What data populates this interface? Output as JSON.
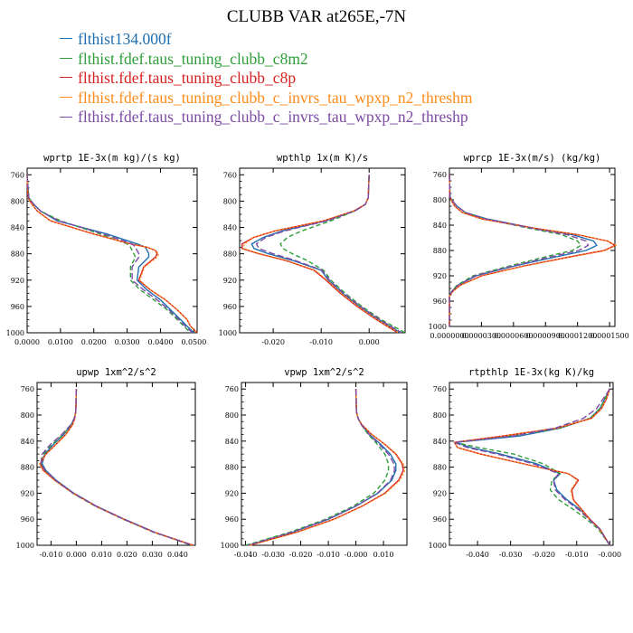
{
  "title": "CLUBB VAR at265E,-7N",
  "legend": [
    {
      "name": "flthist134.000f",
      "color": "#1f6fb0"
    },
    {
      "name": "flthist.fdef.taus_tuning_clubb_c8m2",
      "color": "#2e9e3a"
    },
    {
      "name": "flthist.fdef.taus_tuning_clubb_c8p",
      "color": "#d62222"
    },
    {
      "name": "flthist.fdef.taus_tuning_clubb_c_invrs_tau_wpxp_n2_threshm",
      "color": "#ff8c1a"
    },
    {
      "name": "flthist.fdef.taus_tuning_clubb_c_invrs_tau_wpxp_n2_threshp",
      "color": "#7d4ba3"
    }
  ],
  "chart_data": [
    {
      "type": "line",
      "title": "wprtp  1E-3x(m kg)/(s kg)",
      "xlim": [
        0,
        0.051
      ],
      "ylim": [
        1000,
        750
      ],
      "xticks": [
        "0.0000",
        "0.0100",
        "0.0200",
        "0.0300",
        "0.0400",
        "0.0500"
      ],
      "xtick_values": [
        0,
        0.01,
        0.02,
        0.03,
        0.04,
        0.05
      ],
      "yticks": [
        "760",
        "800",
        "840",
        "880",
        "920",
        "960",
        "1000"
      ],
      "ytick_values": [
        760,
        800,
        840,
        880,
        920,
        960,
        1000
      ],
      "y": [
        760,
        795,
        805,
        815,
        830,
        850,
        865,
        870,
        875,
        880,
        885,
        900,
        920,
        935,
        950,
        965,
        980,
        990,
        1000
      ],
      "series": [
        {
          "x": [
            0,
            0.0005,
            0.002,
            0.004,
            0.009,
            0.024,
            0.033,
            0.0355,
            0.036,
            0.0365,
            0.0365,
            0.0335,
            0.033,
            0.036,
            0.04,
            0.043,
            0.046,
            0.048,
            0.05
          ]
        },
        {
          "x": [
            0,
            0.0005,
            0.002,
            0.004,
            0.01,
            0.022,
            0.03,
            0.031,
            0.0315,
            0.032,
            0.0325,
            0.031,
            0.031,
            0.034,
            0.038,
            0.042,
            0.045,
            0.047,
            0.049
          ]
        },
        {
          "x": [
            0,
            0.0003,
            0.0015,
            0.003,
            0.007,
            0.02,
            0.031,
            0.036,
            0.0385,
            0.039,
            0.0385,
            0.035,
            0.0335,
            0.037,
            0.0415,
            0.045,
            0.048,
            0.049,
            0.051
          ]
        },
        {
          "x": [
            0,
            0.0003,
            0.0015,
            0.003,
            0.007,
            0.02,
            0.031,
            0.036,
            0.0385,
            0.0395,
            0.039,
            0.0352,
            0.0338,
            0.037,
            0.0415,
            0.045,
            0.048,
            0.049,
            0.051
          ]
        },
        {
          "x": [
            0,
            0.0005,
            0.002,
            0.004,
            0.0095,
            0.023,
            0.0315,
            0.0325,
            0.033,
            0.0335,
            0.0335,
            0.0315,
            0.0315,
            0.035,
            0.039,
            0.0425,
            0.0455,
            0.0475,
            0.0495
          ]
        }
      ]
    },
    {
      "type": "line",
      "title": "wpthlp  1x(m K)/s",
      "xlim": [
        -0.027,
        0.0075
      ],
      "ylim": [
        1000,
        750
      ],
      "xticks": [
        "-0.020",
        "-0.010",
        "0.000"
      ],
      "xtick_values": [
        -0.02,
        -0.01,
        0
      ],
      "yticks": [
        "760",
        "800",
        "840",
        "880",
        "920",
        "960",
        "1000"
      ],
      "ytick_values": [
        760,
        800,
        840,
        880,
        920,
        960,
        1000
      ],
      "y": [
        760,
        795,
        805,
        815,
        830,
        845,
        855,
        865,
        872,
        880,
        890,
        905,
        920,
        940,
        960,
        980,
        1000
      ],
      "series": [
        {
          "x": [
            0,
            -0.0002,
            -0.0008,
            -0.003,
            -0.009,
            -0.018,
            -0.022,
            -0.0245,
            -0.024,
            -0.021,
            -0.016,
            -0.01,
            -0.0085,
            -0.0055,
            -0.002,
            0.002,
            0.0065
          ]
        },
        {
          "x": [
            0,
            -0.0002,
            -0.0008,
            -0.003,
            -0.008,
            -0.014,
            -0.017,
            -0.0185,
            -0.018,
            -0.016,
            -0.013,
            -0.0095,
            -0.008,
            -0.005,
            -0.0015,
            0.0025,
            0.0075
          ]
        },
        {
          "x": [
            0,
            -0.0002,
            -0.0008,
            -0.0032,
            -0.0095,
            -0.0195,
            -0.024,
            -0.0265,
            -0.0265,
            -0.023,
            -0.0175,
            -0.0115,
            -0.009,
            -0.006,
            -0.0025,
            0.0015,
            0.006
          ]
        },
        {
          "x": [
            0,
            -0.0002,
            -0.0008,
            -0.0032,
            -0.0095,
            -0.0195,
            -0.024,
            -0.026,
            -0.0262,
            -0.0228,
            -0.0173,
            -0.0113,
            -0.0088,
            -0.0058,
            -0.0023,
            0.0017,
            0.0062
          ]
        },
        {
          "x": [
            0,
            -0.0002,
            -0.0008,
            -0.003,
            -0.0088,
            -0.0175,
            -0.0215,
            -0.0235,
            -0.023,
            -0.02,
            -0.0155,
            -0.0098,
            -0.0083,
            -0.0053,
            -0.0018,
            0.0022,
            0.0068
          ]
        }
      ]
    },
    {
      "type": "line",
      "title": "wprcp  1E-3x(m/s) (kg/kg)",
      "xlim": [
        0,
        0.000155
      ],
      "ylim": [
        1000,
        750
      ],
      "xticks": [
        "0.0000000",
        "0.0000300",
        "0.0000600",
        "0.0000900",
        "0.0001200",
        "0.0001500"
      ],
      "xtick_values": [
        0,
        3e-05,
        6e-05,
        9e-05,
        0.00012,
        0.00015
      ],
      "yticks": [
        "760",
        "800",
        "840",
        "880",
        "920",
        "960",
        "1000"
      ],
      "ytick_values": [
        760,
        800,
        840,
        880,
        920,
        960,
        1000
      ],
      "y": [
        760,
        795,
        800,
        810,
        820,
        830,
        845,
        855,
        865,
        872,
        880,
        890,
        905,
        920,
        935,
        945,
        952,
        1000
      ],
      "series": [
        {
          "x": [
            0,
            5e-07,
            2e-06,
            7e-06,
            1.5e-05,
            3.5e-05,
            8e-05,
            0.000115,
            0.000135,
            0.000138,
            0.000128,
            0.0001,
            6e-05,
            2.5e-05,
            8e-06,
            2e-06,
            0,
            0
          ]
        },
        {
          "x": [
            0,
            5e-07,
            2e-06,
            7e-06,
            1.5e-05,
            3.3e-05,
            7.5e-05,
            0.000105,
            0.00012,
            0.000123,
            0.000115,
            9e-05,
            5.5e-05,
            2.2e-05,
            7e-06,
            2e-06,
            0,
            0
          ]
        },
        {
          "x": [
            0,
            4e-07,
            1.5e-06,
            5e-06,
            1.2e-05,
            3e-05,
            8e-05,
            0.00012,
            0.000148,
            0.000155,
            0.000145,
            0.000113,
            6.8e-05,
            3e-05,
            1e-05,
            3e-06,
            0,
            0
          ]
        },
        {
          "x": [
            0,
            4e-07,
            1.5e-06,
            5e-06,
            1.2e-05,
            3e-05,
            8e-05,
            0.00012,
            0.000148,
            0.000156,
            0.000146,
            0.000114,
            6.9e-05,
            3.1e-05,
            1e-05,
            3e-06,
            0,
            0
          ]
        },
        {
          "x": [
            0,
            5e-07,
            2e-06,
            7e-06,
            1.5e-05,
            3.4e-05,
            7.8e-05,
            0.00011,
            0.000128,
            0.00013,
            0.000121,
            9.5e-05,
            5.8e-05,
            2.4e-05,
            8e-06,
            2e-06,
            0,
            0
          ]
        }
      ]
    },
    {
      "type": "line",
      "title": "upwp  1xm^2/s^2",
      "xlim": [
        -0.0155,
        0.047
      ],
      "ylim": [
        1000,
        750
      ],
      "xticks": [
        "-0.010",
        "0.000",
        "0.010",
        "0.020",
        "0.030",
        "0.040"
      ],
      "xtick_values": [
        -0.01,
        0,
        0.01,
        0.02,
        0.03,
        0.04
      ],
      "yticks": [
        "760",
        "800",
        "840",
        "880",
        "920",
        "960",
        "1000"
      ],
      "ytick_values": [
        760,
        800,
        840,
        880,
        920,
        960,
        1000
      ],
      "y": [
        760,
        795,
        805,
        815,
        830,
        845,
        860,
        875,
        885,
        900,
        920,
        940,
        960,
        980,
        1000
      ],
      "series": [
        {
          "x": [
            0,
            -0.0002,
            -0.0008,
            -0.002,
            -0.005,
            -0.009,
            -0.0125,
            -0.0135,
            -0.012,
            -0.008,
            -0.001,
            0.008,
            0.019,
            0.031,
            0.046
          ]
        },
        {
          "x": [
            0,
            -0.0002,
            -0.0008,
            -0.002,
            -0.0052,
            -0.0095,
            -0.013,
            -0.014,
            -0.0125,
            -0.0085,
            -0.0015,
            0.0075,
            0.0185,
            0.0305,
            0.0455
          ]
        },
        {
          "x": [
            0,
            -0.0002,
            -0.0006,
            -0.0015,
            -0.0042,
            -0.008,
            -0.012,
            -0.0143,
            -0.013,
            -0.0085,
            -0.0012,
            0.0078,
            0.0188,
            0.0308,
            0.0462
          ]
        },
        {
          "x": [
            0,
            -0.0002,
            -0.0006,
            -0.0015,
            -0.0042,
            -0.008,
            -0.012,
            -0.0145,
            -0.0132,
            -0.0087,
            -0.0014,
            0.0076,
            0.0186,
            0.0306,
            0.046
          ]
        },
        {
          "x": [
            0,
            -0.0002,
            -0.0008,
            -0.0022,
            -0.0058,
            -0.0102,
            -0.0135,
            -0.014,
            -0.0123,
            -0.0082,
            -0.0012,
            0.0078,
            0.0188,
            0.0308,
            0.0458
          ]
        }
      ]
    },
    {
      "type": "line",
      "title": "vpwp  1xm^2/s^2",
      "xlim": [
        -0.0415,
        0.0185
      ],
      "ylim": [
        1000,
        750
      ],
      "xticks": [
        "-0.040",
        "-0.030",
        "-0.020",
        "-0.010",
        "-0.000",
        "0.010"
      ],
      "xtick_values": [
        -0.04,
        -0.03,
        -0.02,
        -0.01,
        0,
        0.01
      ],
      "yticks": [
        "760",
        "800",
        "840",
        "880",
        "920",
        "960",
        "1000"
      ],
      "ytick_values": [
        760,
        800,
        840,
        880,
        920,
        960,
        1000
      ],
      "y": [
        760,
        795,
        805,
        815,
        830,
        845,
        860,
        875,
        885,
        900,
        920,
        940,
        960,
        980,
        1000
      ],
      "series": [
        {
          "x": [
            0,
            0.0002,
            0.0008,
            0.002,
            0.005,
            0.009,
            0.0125,
            0.0145,
            0.0145,
            0.013,
            0.008,
            0,
            -0.01,
            -0.023,
            -0.039
          ]
        },
        {
          "x": [
            0,
            0.0002,
            0.0008,
            0.002,
            0.0045,
            0.0078,
            0.0105,
            0.0118,
            0.0118,
            0.0105,
            0.0065,
            -0.001,
            -0.011,
            -0.024,
            -0.04
          ]
        },
        {
          "x": [
            0,
            0.0002,
            0.0008,
            0.0022,
            0.0058,
            0.0105,
            0.0145,
            0.0168,
            0.0172,
            0.0155,
            0.0105,
            0.0022,
            -0.008,
            -0.0215,
            -0.0385
          ]
        },
        {
          "x": [
            0,
            0.0002,
            0.0008,
            0.0022,
            0.0058,
            0.0106,
            0.0147,
            0.0172,
            0.0178,
            0.016,
            0.0108,
            0.0024,
            -0.0078,
            -0.0213,
            -0.0383
          ]
        },
        {
          "x": [
            0,
            0.0002,
            0.0008,
            0.002,
            0.0048,
            0.0085,
            0.0118,
            0.0138,
            0.014,
            0.0126,
            0.0078,
            -0.0002,
            -0.0102,
            -0.0232,
            -0.0392
          ]
        }
      ]
    },
    {
      "type": "line",
      "title": "rtpthlp  1E-3x(kg K)/kg",
      "xlim": [
        -0.0485,
        0.001
      ],
      "ylim": [
        1000,
        750
      ],
      "xticks": [
        "-0.040",
        "-0.030",
        "-0.020",
        "-0.010",
        "-0.000"
      ],
      "xtick_values": [
        -0.04,
        -0.03,
        -0.02,
        -0.01,
        0
      ],
      "yticks": [
        "760",
        "800",
        "840",
        "880",
        "920",
        "960",
        "1000"
      ],
      "ytick_values": [
        760,
        800,
        840,
        880,
        920,
        960,
        1000
      ],
      "y": [
        760,
        775,
        790,
        805,
        820,
        832,
        842,
        850,
        860,
        875,
        890,
        900,
        915,
        930,
        945,
        960,
        975,
        1000
      ],
      "series": [
        {
          "x": [
            0,
            -0.0015,
            -0.003,
            -0.006,
            -0.015,
            -0.027,
            -0.0465,
            -0.042,
            -0.033,
            -0.022,
            -0.015,
            -0.017,
            -0.016,
            -0.013,
            -0.009,
            -0.006,
            -0.003,
            0
          ]
        },
        {
          "x": [
            0,
            -0.0015,
            -0.003,
            -0.006,
            -0.015,
            -0.03,
            -0.047,
            -0.0395,
            -0.029,
            -0.02,
            -0.015,
            -0.0175,
            -0.018,
            -0.0155,
            -0.011,
            -0.007,
            -0.0035,
            0
          ]
        },
        {
          "x": [
            0,
            -0.001,
            -0.0025,
            -0.0055,
            -0.016,
            -0.032,
            -0.047,
            -0.046,
            -0.039,
            -0.026,
            -0.0125,
            -0.0095,
            -0.0115,
            -0.011,
            -0.0085,
            -0.006,
            -0.003,
            0
          ]
        },
        {
          "x": [
            0,
            -0.001,
            -0.0025,
            -0.0055,
            -0.016,
            -0.032,
            -0.047,
            -0.046,
            -0.039,
            -0.026,
            -0.0125,
            -0.0098,
            -0.0118,
            -0.0112,
            -0.0087,
            -0.0062,
            -0.0032,
            0
          ]
        },
        {
          "x": [
            0,
            -0.002,
            -0.004,
            -0.008,
            -0.0165,
            -0.029,
            -0.047,
            -0.043,
            -0.034,
            -0.023,
            -0.0155,
            -0.017,
            -0.0165,
            -0.0135,
            -0.0095,
            -0.0063,
            -0.0031,
            0
          ]
        }
      ]
    }
  ]
}
